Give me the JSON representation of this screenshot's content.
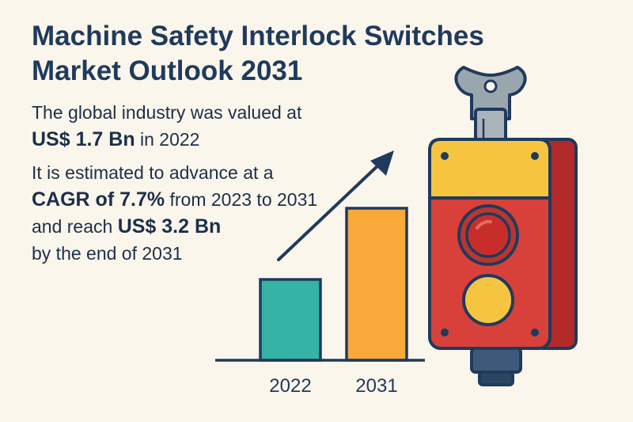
{
  "title": {
    "line1": "Machine Safety Interlock Switches",
    "line2": "Market Outlook 2031"
  },
  "summary": {
    "p1_line1": "The global industry was valued at",
    "p1_value": "US$ 1.7 Bn",
    "p1_suffix": " in 2022",
    "p2_line1": "It is estimated to advance at a",
    "p2_cagr": "CAGR of 7.7%",
    "p2_cagr_suffix": " from 2023 to 2031",
    "p2_reach_prefix": "and reach ",
    "p2_reach_value": "US$ 3.2 Bn",
    "p2_line4": "by the end of 2031"
  },
  "chart_data": {
    "type": "bar",
    "categories": [
      "2022",
      "2031"
    ],
    "values": [
      1.7,
      3.2
    ],
    "ylim": [
      0,
      4.5
    ],
    "colors": [
      "#35b3a5",
      "#f7a93a"
    ],
    "trend_arrow": true,
    "grid": false
  },
  "colors": {
    "background": "#fbf6ec",
    "navy": "#1f3a5c",
    "switch_body": "#d8413a",
    "switch_top": "#f5c542",
    "button_red": "#c72e2b",
    "button_yellow": "#f5c542",
    "key": "#9aa6ad"
  }
}
